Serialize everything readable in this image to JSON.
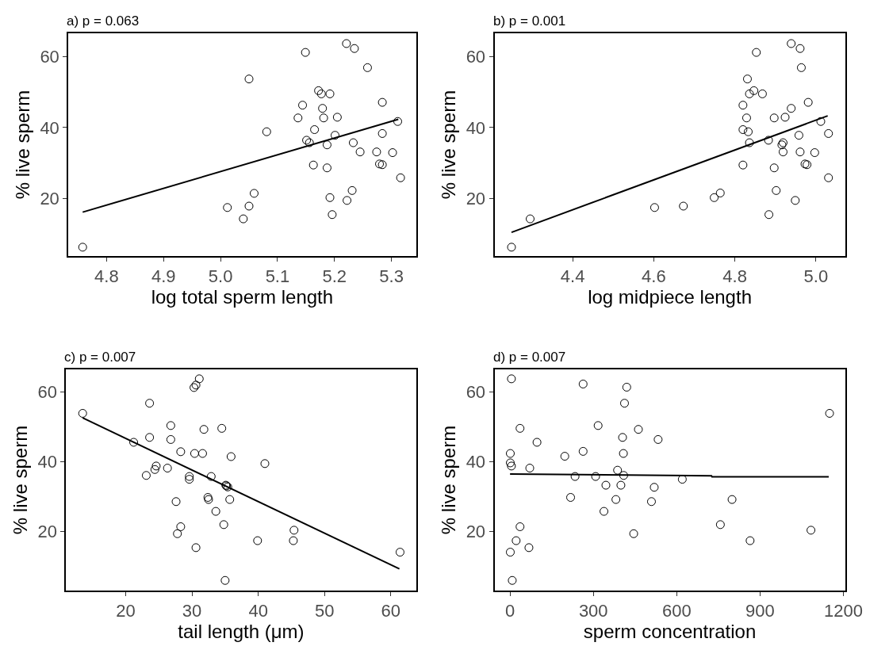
{
  "chart_data": [
    {
      "type": "scatter",
      "title": "a) p = 0.063",
      "xlabel": "log total sperm length",
      "ylabel": "% live sperm",
      "xlim": [
        4.733,
        5.343
      ],
      "ylim": [
        3.7,
        66.6
      ],
      "xticks": [
        4.8,
        4.9,
        {
          "value": 5.0,
          "label": "5.0"
        },
        5.1,
        5.2,
        5.3
      ],
      "yticks": [
        20,
        40,
        60
      ],
      "series": [
        {
          "marker": "circle",
          "color": "#000000",
          "x": [
            4.758,
            5.012,
            5.04,
            5.05,
            5.059,
            5.05,
            5.081,
            5.136,
            5.144,
            5.149,
            5.151,
            5.156,
            5.163,
            5.165,
            5.172,
            5.177,
            5.179,
            5.181,
            5.187,
            5.187,
            5.192,
            5.192,
            5.196,
            5.201,
            5.205,
            5.221,
            5.222,
            5.231,
            5.235,
            5.233,
            5.245,
            5.258,
            5.274,
            5.279,
            5.284,
            5.284,
            5.284,
            5.302,
            5.311,
            5.316
          ],
          "values": [
            6.2,
            17.4,
            14.2,
            17.8,
            21.4,
            53.7,
            38.8,
            42.7,
            46.3,
            61.2,
            36.4,
            35.7,
            29.4,
            39.4,
            50.4,
            49.5,
            45.4,
            42.7,
            35.1,
            28.6,
            49.5,
            20.2,
            15.4,
            37.8,
            42.9,
            63.7,
            19.4,
            22.2,
            62.3,
            35.7,
            33.1,
            56.9,
            33.1,
            29.7,
            29.5,
            38.3,
            47.1,
            32.9,
            41.7,
            25.8
          ]
        },
        {
          "type": "line",
          "color": "#000000",
          "x": [
            4.758,
            5.312
          ],
          "values": [
            16.1,
            42.3
          ]
        }
      ]
    },
    {
      "type": "scatter",
      "title": "b) p = 0.001",
      "xlabel": "log midpiece length",
      "ylabel": "% live sperm",
      "xlim": [
        4.207,
        5.072
      ],
      "ylim": [
        3.7,
        66.6
      ],
      "xticks": [
        4.4,
        4.6,
        4.8,
        {
          "value": 5.0,
          "label": "5.0"
        }
      ],
      "yticks": [
        20,
        40,
        60
      ],
      "series": [
        {
          "marker": "circle",
          "color": "#000000",
          "x": [
            4.249,
            4.295,
            4.602,
            4.673,
            4.749,
            4.764,
            4.82,
            4.82,
            4.82,
            4.829,
            4.831,
            4.833,
            4.836,
            4.836,
            4.847,
            4.853,
            4.868,
            4.883,
            4.884,
            4.897,
            4.897,
            4.902,
            4.916,
            4.919,
            4.919,
            4.924,
            4.939,
            4.939,
            4.949,
            4.958,
            4.961,
            4.961,
            4.964,
            4.973,
            4.978,
            4.981,
            4.997,
            5.012,
            5.031,
            5.031
          ],
          "values": [
            6.2,
            14.2,
            17.4,
            17.8,
            20.2,
            21.5,
            46.3,
            39.4,
            29.4,
            42.7,
            53.7,
            38.8,
            49.5,
            35.7,
            50.4,
            61.2,
            49.5,
            36.4,
            15.4,
            42.7,
            28.6,
            22.2,
            35.1,
            35.7,
            33.1,
            42.9,
            63.7,
            45.4,
            19.4,
            37.8,
            62.3,
            33.1,
            56.9,
            29.7,
            29.5,
            47.1,
            32.9,
            41.7,
            38.3,
            25.8
          ]
        },
        {
          "type": "line",
          "color": "#000000",
          "x": [
            4.249,
            5.029
          ],
          "values": [
            10.4,
            43.3
          ]
        }
      ]
    },
    {
      "type": "scatter",
      "title": "c) p = 0.007",
      "xlabel": "tail length (μm)",
      "ylabel": "% live sperm",
      "xlim": [
        11.0,
        63.8
      ],
      "ylim": [
        3.1,
        66.5
      ],
      "xticks": [
        20,
        30,
        40,
        50,
        60
      ],
      "yticks": [
        20,
        40,
        60
      ],
      "series": [
        {
          "marker": "circle",
          "color": "#000000",
          "x": [
            13.5,
            23.6,
            21.2,
            23.6,
            23.1,
            24.4,
            24.6,
            26.3,
            26.8,
            26.8,
            27.6,
            28.3,
            28.3,
            27.8,
            29.6,
            29.6,
            30.3,
            30.6,
            31.1,
            30.4,
            30.6,
            31.6,
            31.8,
            32.4,
            32.5,
            32.9,
            33.6,
            34.5,
            34.8,
            35.0,
            35.2,
            35.4,
            35.1,
            35.7,
            35.9,
            39.9,
            41.0,
            45.4,
            45.3,
            61.4
          ],
          "values": [
            53.9,
            56.8,
            45.6,
            47.0,
            36.1,
            37.8,
            38.8,
            38.2,
            50.4,
            46.4,
            28.6,
            42.9,
            21.4,
            19.4,
            35.8,
            35.0,
            61.3,
            62.0,
            63.8,
            42.4,
            15.4,
            42.4,
            49.3,
            29.8,
            29.2,
            35.8,
            25.8,
            49.6,
            22.0,
            6.0,
            33.1,
            32.8,
            33.3,
            29.2,
            41.5,
            17.4,
            39.5,
            20.4,
            17.4,
            14.1
          ]
        },
        {
          "type": "line",
          "color": "#000000",
          "x": [
            13.5,
            61.3
          ],
          "values": [
            52.6,
            9.3
          ]
        }
      ]
    },
    {
      "type": "scatter",
      "title": "d) p = 0.007",
      "xlabel": "sperm concentration",
      "ylabel": "% live sperm",
      "xlim": [
        -56,
        1206
      ],
      "ylim": [
        3.1,
        66.5
      ],
      "xticks": [
        0,
        300,
        600,
        900,
        1200
      ],
      "yticks": [
        20,
        40,
        60
      ],
      "series": [
        {
          "marker": "circle",
          "color": "#000000",
          "x": [
            5,
            1,
            1,
            5,
            36,
            71,
            97,
            36,
            22,
            68,
            1,
            8,
            197,
            218,
            234,
            263,
            263,
            308,
            317,
            338,
            345,
            381,
            387,
            399,
            405,
            408,
            409,
            412,
            420,
            445,
            462,
            509,
            519,
            533,
            620,
            757,
            799,
            864,
            1083,
            1150
          ],
          "values": [
            63.8,
            42.4,
            39.7,
            38.8,
            49.6,
            38.2,
            45.6,
            21.4,
            17.4,
            15.4,
            14.1,
            6.0,
            41.6,
            29.8,
            35.8,
            62.3,
            43.0,
            35.8,
            50.4,
            25.8,
            33.3,
            29.2,
            37.6,
            33.3,
            47.0,
            42.4,
            36.1,
            56.8,
            61.4,
            19.4,
            49.3,
            28.6,
            32.7,
            46.4,
            35.0,
            22.0,
            29.2,
            17.4,
            20.4,
            53.9
          ]
        },
        {
          "type": "line",
          "color": "#000000",
          "x": [
            0,
            725,
            727,
            1147
          ],
          "values": [
            36.5,
            36.0,
            35.7,
            35.7
          ]
        }
      ]
    }
  ]
}
